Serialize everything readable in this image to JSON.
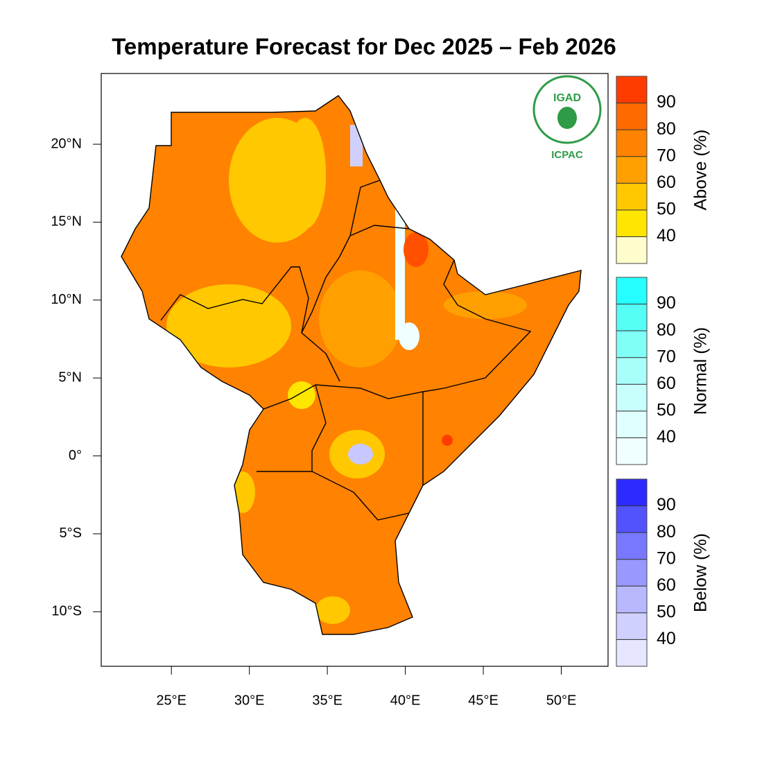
{
  "title": "Temperature Forecast for Dec 2025 – Feb 2026",
  "map": {
    "xlim": [
      20.5,
      53.0
    ],
    "ylim": [
      -13.5,
      24.54
    ],
    "xticks": [
      {
        "value": 25,
        "label": "25°E"
      },
      {
        "value": 30,
        "label": "30°E"
      },
      {
        "value": 35,
        "label": "35°E"
      },
      {
        "value": 40,
        "label": "40°E"
      },
      {
        "value": 45,
        "label": "45°E"
      },
      {
        "value": 50,
        "label": "50°E"
      }
    ],
    "yticks": [
      {
        "value": 20,
        "label": "20°N"
      },
      {
        "value": 15,
        "label": "15°N"
      },
      {
        "value": 10,
        "label": "10°N"
      },
      {
        "value": 5,
        "label": "5°N"
      },
      {
        "value": 0,
        "label": "0°"
      },
      {
        "value": -5,
        "label": "5°S"
      },
      {
        "value": -10,
        "label": "10°S"
      }
    ]
  },
  "logo": {
    "top": "IGAD",
    "bottom": "ICPAC"
  },
  "colorbars": [
    {
      "label": "Above (%)",
      "lim": [
        30,
        100
      ],
      "ticks": [
        40,
        50,
        60,
        70,
        80,
        90
      ],
      "colors": [
        "#fffdcc",
        "#ffe600",
        "#ffc800",
        "#ffa000",
        "#ff8200",
        "#ff6a00",
        "#ff3c00"
      ]
    },
    {
      "label": "Normal (%)",
      "lim": [
        30,
        100
      ],
      "ticks": [
        40,
        50,
        60,
        70,
        80,
        90
      ],
      "colors": [
        "#f0ffff",
        "#e0ffff",
        "#c8fffd",
        "#a8fffa",
        "#80fff7",
        "#55fff5",
        "#25ffff"
      ]
    },
    {
      "label": "Below (%)",
      "lim": [
        30,
        100
      ],
      "ticks": [
        40,
        50,
        60,
        70,
        80,
        90
      ],
      "colors": [
        "#e6e6ff",
        "#d0d0ff",
        "#b8b8ff",
        "#9898ff",
        "#7878ff",
        "#5252ff",
        "#2b2bff"
      ]
    }
  ]
}
